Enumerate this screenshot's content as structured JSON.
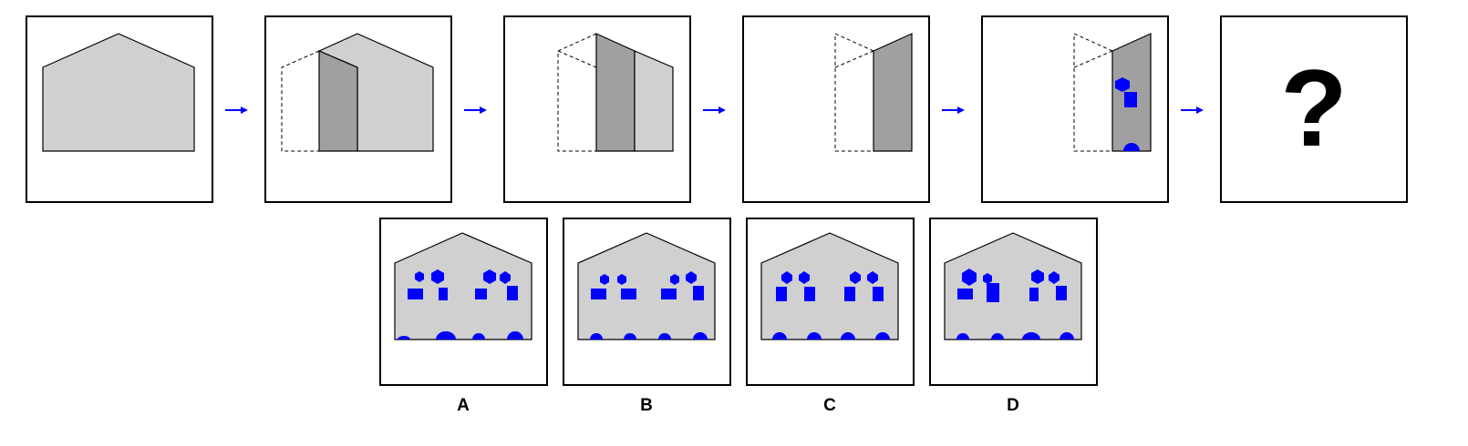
{
  "sequence": {
    "question_mark": "?"
  },
  "options": {
    "labels": [
      "A",
      "B",
      "C",
      "D"
    ]
  },
  "colors": {
    "frame": "#000000",
    "house_fill": "#d0d0d0",
    "house_dark": "#a0a0a0",
    "marks": "#0000ff",
    "arrow": "#0000ff"
  }
}
